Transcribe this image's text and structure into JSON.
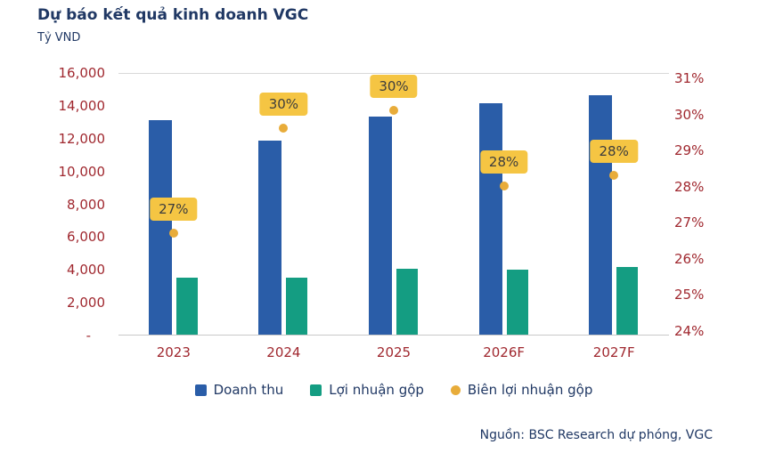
{
  "title": "Dự báo kết quả kinh doanh VGC",
  "unit_label": "Tỷ VND",
  "source": "Nguồn: BSC Research dự phóng, VGC",
  "colors": {
    "navy": "#203864",
    "axis_text": "#A0282F",
    "revenue": "#2A5DA8",
    "gross-profit": "#149D82",
    "margin": "#E8AC3A",
    "margin_label_bg": "#F5C543",
    "margin_label_text": "#3D3D3D",
    "plot_border": "#D8D8D8",
    "axis_line": "#C9C9C9",
    "background": "#FFFFFF"
  },
  "chart_data": {
    "type": "bar",
    "title": "Dự báo kết quả kinh doanh VGC",
    "ylabel_left": "Tỷ VND",
    "grid": false,
    "legend_position": "bottom",
    "categories": [
      "2023",
      "2024",
      "2025",
      "2026F",
      "2027F"
    ],
    "series": [
      {
        "name": "Doanh thu",
        "key": "revenue",
        "kind": "bar",
        "axis": "left",
        "values": [
          13100,
          11800,
          13300,
          14100,
          14600
        ]
      },
      {
        "name": "Lợi nhuận gộp",
        "key": "gross-profit",
        "kind": "bar",
        "axis": "left",
        "values": [
          3500,
          3500,
          4000,
          3950,
          4100
        ]
      },
      {
        "name": "Biên lợi nhuận gộp",
        "key": "margin",
        "kind": "point",
        "axis": "right",
        "values": [
          26.7,
          29.6,
          30.1,
          28.0,
          28.3
        ],
        "point_labels": [
          "27%",
          "30%",
          "30%",
          "28%",
          "28%"
        ]
      }
    ],
    "left_axis": {
      "min": 0,
      "max": 16000,
      "ticks": [
        "16,000",
        "14,000",
        "12,000",
        "10,000",
        "8,000",
        "6,000",
        "4,000",
        "2,000",
        "-"
      ]
    },
    "right_axis": {
      "min": 24,
      "max": 31,
      "ticks": [
        "31%",
        "30%",
        "29%",
        "28%",
        "27%",
        "26%",
        "25%",
        "24%"
      ]
    }
  }
}
